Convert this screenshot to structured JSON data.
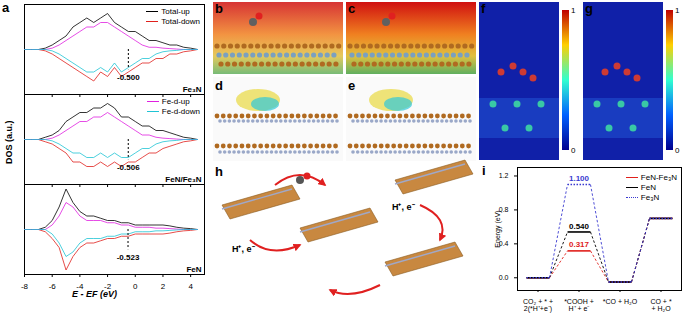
{
  "chart_data": [
    {
      "type": "line",
      "panel_label": "a",
      "title": "Fe₃N",
      "ylabel": "DOS (a.u.)",
      "x": [
        -8,
        -7.5,
        -7,
        -6.5,
        -6,
        -5.5,
        -5,
        -4.5,
        -4,
        -3.5,
        -3,
        -2.5,
        -2,
        -1.5,
        -1,
        -0.5,
        0,
        0.5,
        1,
        1.5,
        2,
        2.5,
        3,
        3.5,
        4,
        4.5
      ],
      "xlim": [
        -8,
        5
      ],
      "xticks": [
        -8,
        -6,
        -4,
        -2,
        0,
        2,
        4
      ],
      "ylim": [
        -10,
        10
      ],
      "tick_labels": false,
      "legend": "top-right",
      "series": [
        {
          "name": "Total-up",
          "color": "#000000",
          "values": [
            0,
            0,
            0,
            0.3,
            1,
            2,
            3,
            5,
            6,
            7,
            6,
            7,
            8,
            6,
            5,
            4,
            4,
            3,
            2,
            2,
            1.5,
            1,
            1,
            0.5,
            0.3,
            0
          ]
        },
        {
          "name": "Total-down",
          "color": "#e0201c",
          "values": [
            0,
            0,
            0,
            -0.3,
            -1,
            -2,
            -3,
            -4,
            -5,
            -6,
            -7,
            -5,
            -6,
            -4,
            -6,
            -5,
            -4,
            -3,
            -3,
            -2,
            -2,
            -1,
            -1,
            -0.5,
            -0.3,
            0
          ]
        },
        {
          "name": "Fe-d-up",
          "color": "#e020e0",
          "values": [
            0,
            0,
            0,
            0,
            0.3,
            1,
            2,
            3,
            4,
            5,
            5,
            6,
            6,
            5,
            4,
            3,
            2,
            1,
            0.5,
            0.5,
            0.3,
            0.2,
            0.1,
            0,
            0,
            0
          ]
        },
        {
          "name": "Fe-d-down",
          "color": "#20c4d4",
          "values": [
            0,
            0,
            0,
            0,
            -0.3,
            -1,
            -2,
            -3,
            -4,
            -5,
            -5,
            -4,
            -5,
            -3,
            -5,
            -4,
            -3,
            -2,
            -2,
            -1,
            -0.5,
            -0.3,
            -0.2,
            0,
            0,
            0
          ]
        }
      ],
      "annotations": [
        {
          "x": -0.5,
          "text": "-0.500"
        }
      ]
    },
    {
      "type": "line",
      "title": "FeN/Fe₃N",
      "x": [
        -8,
        -7.5,
        -7,
        -6.5,
        -6,
        -5.5,
        -5,
        -4.5,
        -4,
        -3.5,
        -3,
        -2.5,
        -2,
        -1.5,
        -1,
        -0.5,
        0,
        0.5,
        1,
        1.5,
        2,
        2.5,
        3,
        3.5,
        4,
        4.5
      ],
      "xlim": [
        -8,
        5
      ],
      "xticks": [
        -8,
        -6,
        -4,
        -2,
        0,
        2,
        4
      ],
      "ylim": [
        -10,
        10
      ],
      "tick_labels": false,
      "legend": "top-right",
      "series": [
        {
          "name": "Total-up",
          "color": "#000000",
          "values": [
            0,
            0,
            0,
            0.5,
            1,
            2,
            4,
            5,
            6,
            6,
            7,
            7,
            8,
            7,
            5,
            5,
            4,
            3,
            3,
            2,
            2,
            1.5,
            1,
            0.5,
            0.3,
            0
          ]
        },
        {
          "name": "Total-down",
          "color": "#e0201c",
          "values": [
            0,
            0,
            0,
            -0.5,
            -1,
            -2,
            -3,
            -5,
            -5,
            -6,
            -6,
            -5,
            -6,
            -5,
            -6,
            -5,
            -5,
            -4,
            -3,
            -3,
            -2,
            -1.5,
            -1,
            -0.5,
            -0.3,
            0
          ]
        },
        {
          "name": "Fe-d-up",
          "color": "#e020e0",
          "values": [
            0,
            0,
            0,
            0,
            0.3,
            1,
            2,
            3,
            4,
            4,
            5,
            5,
            6,
            5,
            4,
            3,
            2,
            1,
            1,
            0.5,
            0.3,
            0.2,
            0.1,
            0,
            0,
            0
          ]
        },
        {
          "name": "Fe-d-down",
          "color": "#20c4d4",
          "values": [
            0,
            0,
            0,
            0,
            -0.3,
            -1,
            -2,
            -3,
            -3,
            -4,
            -4,
            -3,
            -4,
            -3,
            -4,
            -4,
            -3,
            -2,
            -2,
            -1,
            -0.5,
            -0.3,
            -0.2,
            0,
            0,
            0
          ]
        }
      ],
      "annotations": [
        {
          "x": -0.506,
          "text": "-0.506"
        }
      ]
    },
    {
      "type": "line",
      "title": "FeN",
      "xlabel": "E - EF (eV)",
      "x": [
        -8,
        -7.5,
        -7,
        -6.5,
        -6,
        -5.5,
        -5,
        -4.5,
        -4,
        -3.5,
        -3,
        -2.5,
        -2,
        -1.5,
        -1,
        -0.5,
        0,
        0.5,
        1,
        1.5,
        2,
        2.5,
        3,
        3.5,
        4,
        4.5
      ],
      "xlim": [
        -8,
        5
      ],
      "xticks": [
        -8,
        -6,
        -4,
        -2,
        0,
        2,
        4
      ],
      "ylim": [
        -10,
        10
      ],
      "tick_labels": "x",
      "series": [
        {
          "name": "Total-up",
          "color": "#000000",
          "values": [
            0,
            0,
            0,
            0.5,
            2,
            5,
            9,
            6,
            4,
            3,
            3,
            2.5,
            2,
            2,
            1.5,
            1.5,
            1,
            1,
            1,
            1,
            1,
            0.8,
            0.5,
            0.3,
            0.2,
            0
          ]
        },
        {
          "name": "Total-down",
          "color": "#e0201c",
          "values": [
            0,
            0,
            0,
            -0.5,
            -2,
            -4,
            -9,
            -6,
            -4,
            -3,
            -3,
            -2.5,
            -2,
            -2,
            -1.5,
            -1.5,
            -1,
            -1,
            -1,
            -1,
            -1,
            -0.8,
            -0.5,
            -0.3,
            -0.2,
            0
          ]
        },
        {
          "name": "Fe-d-up",
          "color": "#e020e0",
          "values": [
            0,
            0,
            0,
            0,
            1,
            3,
            6,
            5,
            3,
            2,
            2,
            2,
            1.5,
            1.5,
            1,
            1,
            0.5,
            0.5,
            0.5,
            0.3,
            0.3,
            0.2,
            0.1,
            0,
            0,
            0
          ]
        },
        {
          "name": "Fe-d-down",
          "color": "#20c4d4",
          "values": [
            0,
            0,
            0,
            0,
            -1,
            -3,
            -6,
            -5,
            -3,
            -2,
            -2,
            -2,
            -1.5,
            -1.5,
            -1,
            -1,
            -0.5,
            -0.5,
            -0.5,
            -0.3,
            -0.3,
            -0.2,
            -0.1,
            0,
            0,
            0
          ]
        }
      ],
      "annotations": [
        {
          "x": -0.523,
          "text": "-0.523"
        }
      ]
    },
    {
      "type": "step",
      "panel_label": "i",
      "ylabel": "Energy (eV)",
      "categories": [
        "CO₂ + * +\n2(*H⁺+e⁻)",
        "*COOH +\nH⁺ + e⁻",
        "*CO + H₂O",
        "CO + *\n+ H₂O"
      ],
      "ylim": [
        -0.15,
        1.3
      ],
      "yticks": [
        {
          "value": 0,
          "label": "0.0"
        },
        {
          "value": 0.4,
          "label": "0.4"
        },
        {
          "value": 0.8,
          "label": "0.8"
        },
        {
          "value": 1.2,
          "label": "1.2"
        }
      ],
      "legend": "top-right",
      "series": [
        {
          "name": "FeN-Fe₃N",
          "color": "#e0201c",
          "line_style": "solid",
          "values": [
            0,
            0.317,
            -0.05,
            0.7
          ]
        },
        {
          "name": "FeN",
          "color": "#000000",
          "line_style": "solid",
          "values": [
            0,
            0.54,
            -0.05,
            0.7
          ]
        },
        {
          "name": "Fe₃N",
          "color": "#3a3ad0",
          "line_style": "dotted",
          "values": [
            0,
            1.1,
            -0.05,
            0.7
          ]
        }
      ],
      "annotations": [
        {
          "x": 1,
          "y": 1.1,
          "text": "1.100",
          "color": "#3a3ad0"
        },
        {
          "x": 1,
          "y": 0.54,
          "text": "0.540",
          "color": "#000000"
        },
        {
          "x": 1,
          "y": 0.317,
          "text": "0.317",
          "color": "#e0201c"
        }
      ]
    }
  ],
  "images": {
    "b": {
      "panel_label": "b"
    },
    "c": {
      "panel_label": "c"
    },
    "d": {
      "panel_label": "d"
    },
    "e": {
      "panel_label": "e"
    },
    "f": {
      "panel_label": "f",
      "colorbar": {
        "range": [
          0,
          1
        ],
        "ticks": [
          0,
          1
        ]
      }
    },
    "g": {
      "panel_label": "g",
      "colorbar": {
        "range": [
          0,
          1
        ],
        "ticks": [
          0,
          1
        ]
      }
    },
    "h": {
      "panel_label": "h",
      "labels": [
        "H⁺, e⁻",
        "H⁺, e⁻"
      ]
    }
  }
}
